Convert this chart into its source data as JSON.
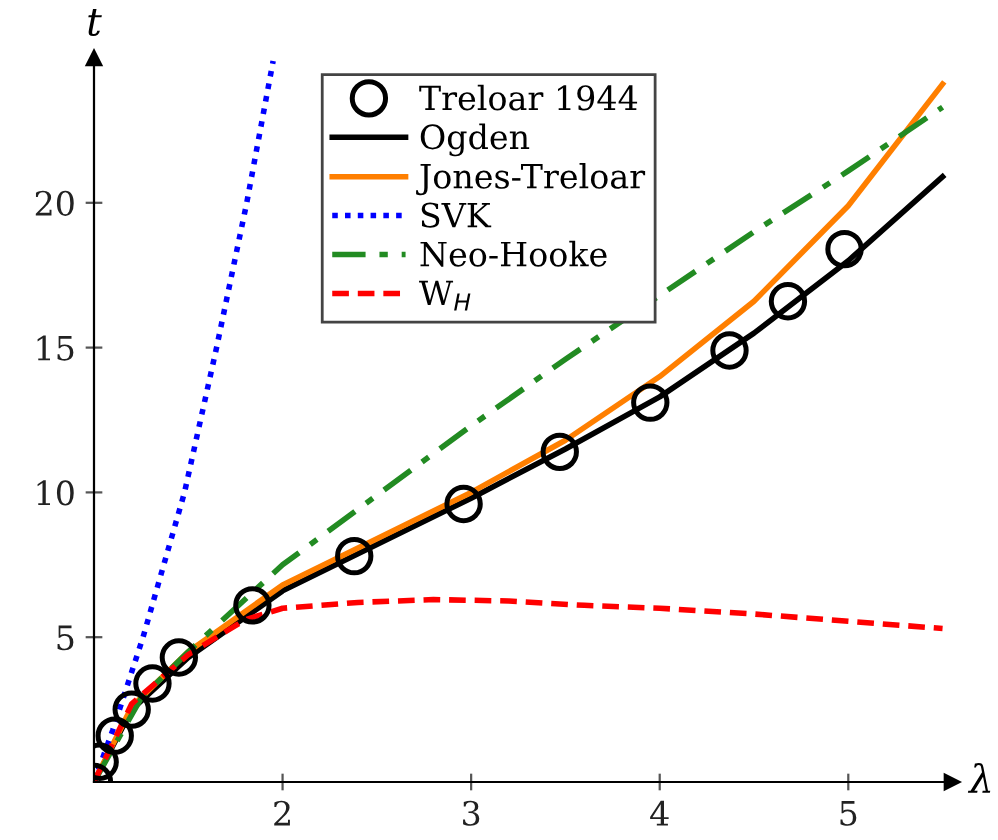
{
  "chart_data": {
    "type": "line",
    "xlabel": "λ",
    "ylabel": "t",
    "xlim": [
      1,
      5.55
    ],
    "ylim": [
      0,
      25
    ],
    "xticks": [
      2,
      3,
      4,
      5
    ],
    "yticks": [
      5,
      10,
      15,
      20
    ],
    "legend": "top",
    "series": [
      {
        "name": "Treloar 1944",
        "type": "scatter",
        "marker": "circle",
        "color": "#000000",
        "x": [
          1,
          1.03,
          1.11,
          1.2,
          1.31,
          1.45,
          1.84,
          2.38,
          2.96,
          3.47,
          3.95,
          4.37,
          4.68,
          4.98
        ],
        "values": [
          0,
          0.7,
          1.6,
          2.5,
          3.4,
          4.3,
          6.1,
          7.8,
          9.6,
          11.4,
          13.1,
          14.9,
          16.6,
          18.4
        ]
      },
      {
        "name": "Ogden",
        "color": "#000000",
        "line_style": "solid",
        "x": [
          1,
          1.2,
          1.5,
          2,
          2.5,
          3,
          3.5,
          4,
          4.5,
          5,
          5.5
        ],
        "values": [
          0,
          2.5,
          4.3,
          6.6,
          8.2,
          9.8,
          11.5,
          13.3,
          15.5,
          18.0,
          20.9
        ]
      },
      {
        "name": "Jones-Treloar",
        "color": "#ff7f00",
        "line_style": "solid",
        "x": [
          1,
          1.2,
          1.5,
          2,
          2.5,
          3,
          3.5,
          4,
          4.5,
          5,
          5.5
        ],
        "values": [
          0,
          2.6,
          4.5,
          6.8,
          8.4,
          10.0,
          11.8,
          14.0,
          16.6,
          19.9,
          24.1
        ]
      },
      {
        "name": "SVK",
        "color": "#0000ff",
        "line_style": "dotted",
        "x": [
          1,
          1.1,
          1.26,
          1.48,
          1.65,
          1.81,
          1.95
        ],
        "values": [
          0,
          1.8,
          5,
          10,
          15,
          20,
          24.9
        ]
      },
      {
        "name": "Neo-Hooke",
        "color": "#228b22",
        "line_style": "dashdot",
        "x": [
          1,
          1.25,
          1.5,
          2,
          2.5,
          3,
          3.5,
          4,
          4.5,
          5,
          5.5
        ],
        "values": [
          0,
          2.9,
          4.5,
          7.5,
          9.9,
          12.3,
          14.6,
          16.8,
          19.0,
          21.1,
          23.3
        ]
      },
      {
        "name": "W$_{H}$",
        "color": "#ff0000",
        "line_style": "dashed",
        "x": [
          1,
          1.2,
          1.5,
          1.8,
          2,
          2.4,
          2.8,
          3.2,
          3.6,
          4,
          4.5,
          5,
          5.5
        ],
        "values": [
          0,
          2.7,
          4.4,
          5.6,
          6.0,
          6.2,
          6.3,
          6.25,
          6.1,
          6.0,
          5.8,
          5.55,
          5.3
        ]
      }
    ]
  }
}
